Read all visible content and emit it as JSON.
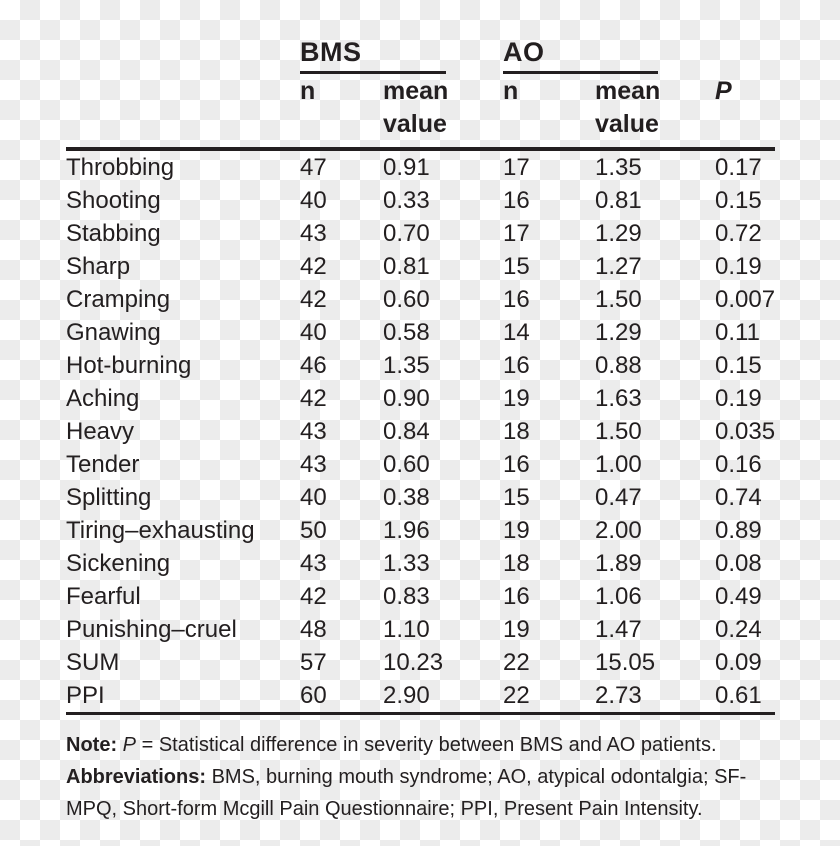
{
  "table": {
    "groups": [
      {
        "label": "BMS"
      },
      {
        "label": "AO"
      }
    ],
    "columns": {
      "n": "n",
      "mean": "mean value",
      "p": "P"
    },
    "rows": [
      {
        "label": "Throbbing",
        "bms_n": "47",
        "bms_mean": "0.91",
        "ao_n": "17",
        "ao_mean": "1.35",
        "p": "0.17"
      },
      {
        "label": "Shooting",
        "bms_n": "40",
        "bms_mean": "0.33",
        "ao_n": "16",
        "ao_mean": "0.81",
        "p": "0.15"
      },
      {
        "label": "Stabbing",
        "bms_n": "43",
        "bms_mean": "0.70",
        "ao_n": "17",
        "ao_mean": "1.29",
        "p": "0.72"
      },
      {
        "label": "Sharp",
        "bms_n": "42",
        "bms_mean": "0.81",
        "ao_n": "15",
        "ao_mean": "1.27",
        "p": "0.19"
      },
      {
        "label": "Cramping",
        "bms_n": "42",
        "bms_mean": "0.60",
        "ao_n": "16",
        "ao_mean": "1.50",
        "p": "0.007"
      },
      {
        "label": "Gnawing",
        "bms_n": "40",
        "bms_mean": "0.58",
        "ao_n": "14",
        "ao_mean": "1.29",
        "p": "0.11"
      },
      {
        "label": "Hot-burning",
        "bms_n": "46",
        "bms_mean": "1.35",
        "ao_n": "16",
        "ao_mean": "0.88",
        "p": "0.15"
      },
      {
        "label": "Aching",
        "bms_n": "42",
        "bms_mean": "0.90",
        "ao_n": "19",
        "ao_mean": "1.63",
        "p": "0.19"
      },
      {
        "label": "Heavy",
        "bms_n": "43",
        "bms_mean": "0.84",
        "ao_n": "18",
        "ao_mean": "1.50",
        "p": "0.035"
      },
      {
        "label": "Tender",
        "bms_n": "43",
        "bms_mean": "0.60",
        "ao_n": "16",
        "ao_mean": "1.00",
        "p": "0.16"
      },
      {
        "label": "Splitting",
        "bms_n": "40",
        "bms_mean": "0.38",
        "ao_n": "15",
        "ao_mean": "0.47",
        "p": "0.74"
      },
      {
        "label": "Tiring–exhausting",
        "bms_n": "50",
        "bms_mean": "1.96",
        "ao_n": "19",
        "ao_mean": "2.00",
        "p": "0.89"
      },
      {
        "label": "Sickening",
        "bms_n": "43",
        "bms_mean": "1.33",
        "ao_n": "18",
        "ao_mean": "1.89",
        "p": "0.08"
      },
      {
        "label": "Fearful",
        "bms_n": "42",
        "bms_mean": "0.83",
        "ao_n": "16",
        "ao_mean": "1.06",
        "p": "0.49"
      },
      {
        "label": "Punishing–cruel",
        "bms_n": "48",
        "bms_mean": "1.10",
        "ao_n": "19",
        "ao_mean": "1.47",
        "p": "0.24"
      },
      {
        "label": "SUM",
        "bms_n": "57",
        "bms_mean": "10.23",
        "ao_n": "22",
        "ao_mean": "15.05",
        "p": "0.09"
      },
      {
        "label": "PPI",
        "bms_n": "60",
        "bms_mean": "2.90",
        "ao_n": "22",
        "ao_mean": "2.73",
        "p": "0.61"
      }
    ]
  },
  "footnotes": {
    "note_label": "Note:",
    "note_p": "P",
    "note_text": "= Statistical difference in severity between BMS and AO patients.",
    "abbr_label": "Abbreviations:",
    "abbr_text": "BMS, burning mouth syndrome; AO, atypical odontalgia; SF-MPQ, Short-form Mcgill Pain Questionnaire; PPI, Present Pain Intensity."
  },
  "colors": {
    "text": "#231f20",
    "rule": "#231f20",
    "checker_light": "#ffffff",
    "checker_dark": "#ececec"
  }
}
